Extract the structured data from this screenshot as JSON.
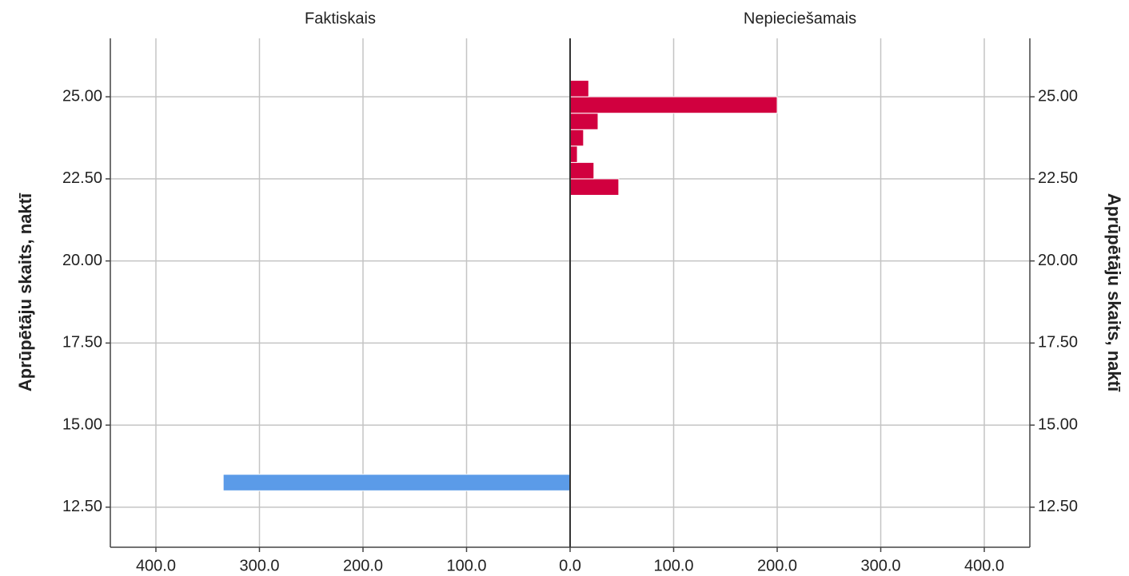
{
  "chart_data": {
    "type": "pyramid",
    "y_label": "Aprūpētāju skaits, naktī",
    "series": [
      {
        "name": "Faktiskais",
        "color": "#5b9be8",
        "bins": [
          13,
          13.5
        ],
        "values": [
          335
        ]
      },
      {
        "name": "Nepieciešamais",
        "color": "#d1003f",
        "bins": [
          22,
          22.5,
          23,
          23.5,
          24,
          24.5,
          25,
          25.5
        ],
        "values": [
          47,
          23,
          7,
          13,
          27,
          200,
          18
        ]
      }
    ],
    "xlim": [
      0,
      444
    ],
    "xticks": [
      {
        "value": 0,
        "label": "0.0"
      },
      {
        "value": 100,
        "label": "100.0"
      },
      {
        "value": 200,
        "label": "200.0"
      },
      {
        "value": 300,
        "label": "300.0"
      },
      {
        "value": 400,
        "label": "400.0"
      }
    ],
    "ylim": [
      11.28,
      26.78
    ],
    "yticks": [
      {
        "value": 12.5,
        "label": "12.50"
      },
      {
        "value": 15,
        "label": "15.00"
      },
      {
        "value": 17.5,
        "label": "17.50"
      },
      {
        "value": 20,
        "label": "20.00"
      },
      {
        "value": 22.5,
        "label": "22.50"
      },
      {
        "value": 25,
        "label": "25.00"
      }
    ],
    "grid": true
  }
}
